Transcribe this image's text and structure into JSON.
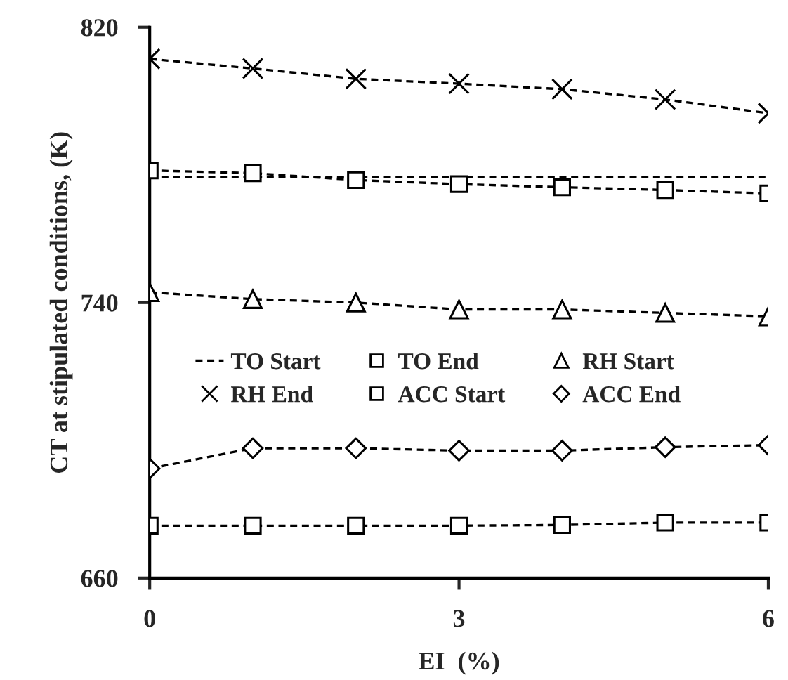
{
  "chart_data": {
    "type": "line",
    "xlabel": "EI  (%)",
    "ylabel": "CT at stipulated conditions, (K)",
    "x": [
      0,
      1,
      2,
      3,
      4,
      5,
      6
    ],
    "xlim": [
      0,
      6
    ],
    "xticks": [
      0,
      3,
      6
    ],
    "ylim": [
      660,
      820
    ],
    "yticks": [
      660,
      740,
      820
    ],
    "grid": false,
    "legend": "center left",
    "line_style": "dashed",
    "series": [
      {
        "name": "TO Start",
        "color": "#000000",
        "marker": "none",
        "values": [
          776.5,
          776.5,
          776.5,
          776.5,
          776.5,
          776.5,
          776.5
        ]
      },
      {
        "name": "TO End",
        "color": "#000000",
        "marker": "square",
        "values": [
          778.4,
          777.6,
          775.6,
          774.4,
          773.5,
          772.7,
          771.7
        ]
      },
      {
        "name": "RH Start",
        "color": "#000000",
        "marker": "triangle",
        "values": [
          743,
          741,
          740,
          738,
          738,
          737,
          736
        ]
      },
      {
        "name": "RH End",
        "color": "#000000",
        "marker": "cross",
        "values": [
          810.8,
          808,
          805,
          803.6,
          802,
          799,
          795
        ]
      },
      {
        "name": "ACC Start",
        "color": "#000000",
        "marker": "square",
        "values": [
          675.2,
          675.2,
          675.2,
          675.2,
          675.4,
          676.1,
          676.1
        ]
      },
      {
        "name": "ACC End",
        "color": "#000000",
        "marker": "diamond",
        "values": [
          691.8,
          697.7,
          697.7,
          697,
          697,
          698,
          698.6
        ]
      }
    ]
  }
}
